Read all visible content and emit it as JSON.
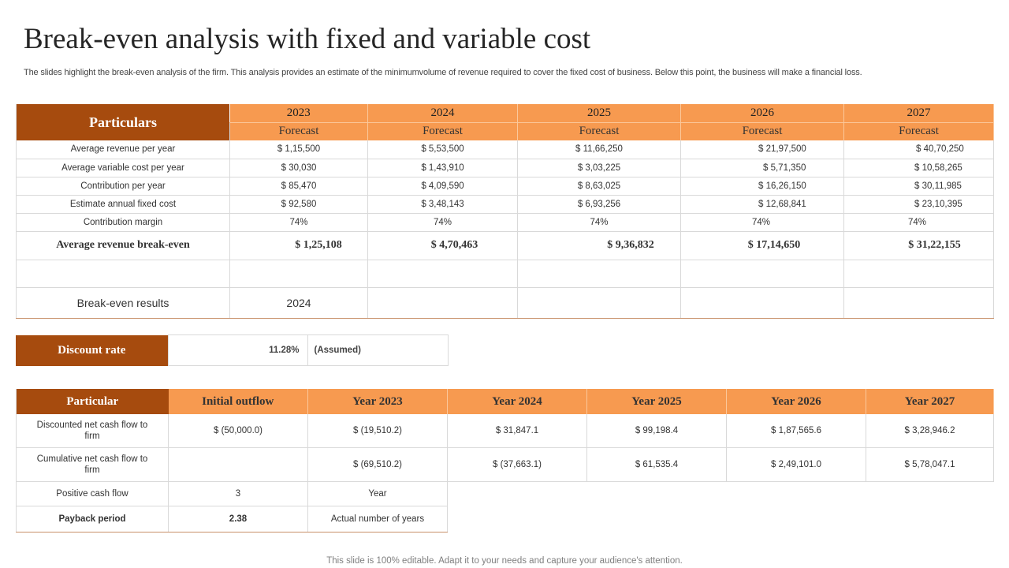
{
  "title": "Break-even analysis with fixed and variable cost",
  "subtitle": "The slides highlight the break-even analysis of the firm. This analysis provides an estimate of the minimumvolume of revenue required to cover the fixed cost of business. Below this point, the business will make a financial loss.",
  "breakeven_table": {
    "header": "Particulars",
    "years": [
      "2023",
      "2024",
      "2025",
      "2026",
      "2027"
    ],
    "subheader": "Forecast",
    "rows": [
      {
        "label": "Average revenue per year",
        "values": [
          "$ 1,15,500",
          "$ 5,53,500",
          "$ 11,66,250",
          "$ 21,97,500",
          "$ 40,70,250"
        ]
      },
      {
        "label": "Average variable cost per year",
        "values": [
          "$ 30,030",
          "$ 1,43,910",
          "$ 3,03,225",
          "$ 5,71,350",
          "$ 10,58,265"
        ]
      },
      {
        "label": "Contribution per year",
        "values": [
          "$ 85,470",
          "$ 4,09,590",
          "$ 8,63,025",
          "$ 16,26,150",
          "$ 30,11,985"
        ]
      },
      {
        "label": "Estimate annual fixed cost",
        "values": [
          "$ 92,580",
          "$ 3,48,143",
          "$ 6,93,256",
          "$ 12,68,841",
          "$ 23,10,395"
        ]
      },
      {
        "label": "Contribution margin",
        "values": [
          "74%",
          "74%",
          "74%",
          "74%",
          "74%"
        ]
      }
    ],
    "breakeven_row": {
      "label": "Average revenue break-even",
      "values": [
        "$ 1,25,108",
        "$ 4,70,463",
        "$ 9,36,832",
        "$ 17,14,650",
        "$ 31,22,155"
      ]
    },
    "result_row": {
      "label": "Break-even results",
      "value": "2024"
    }
  },
  "discount": {
    "label": "Discount rate",
    "value": "11.28%",
    "note": "(Assumed)"
  },
  "cashflow_table": {
    "headers": [
      "Particular",
      "Initial outflow",
      "Year 2023",
      "Year 2024",
      "Year 2025",
      "Year 2026",
      "Year 2027"
    ],
    "rows": [
      {
        "label": "Discounted net cash flow to firm",
        "values": [
          "$ (50,000.0)",
          "$ (19,510.2)",
          "$ 31,847.1",
          "$ 99,198.4",
          "$ 1,87,565.6",
          "$ 3,28,946.2"
        ]
      },
      {
        "label": "Cumulative net cash flow to firm",
        "values": [
          "",
          "$ (69,510.2)",
          "$ (37,663.1)",
          "$ 61,535.4",
          "$ 2,49,101.0",
          "$ 5,78,047.1"
        ]
      }
    ],
    "positive_cash_flow": {
      "label": "Positive cash flow",
      "value": "3",
      "unit": "Year"
    },
    "payback_period": {
      "label": "Payback period",
      "value": "2.38",
      "unit": "Actual number of years"
    }
  },
  "footer": "This slide is 100% editable. Adapt it to your needs and capture your audience's attention."
}
